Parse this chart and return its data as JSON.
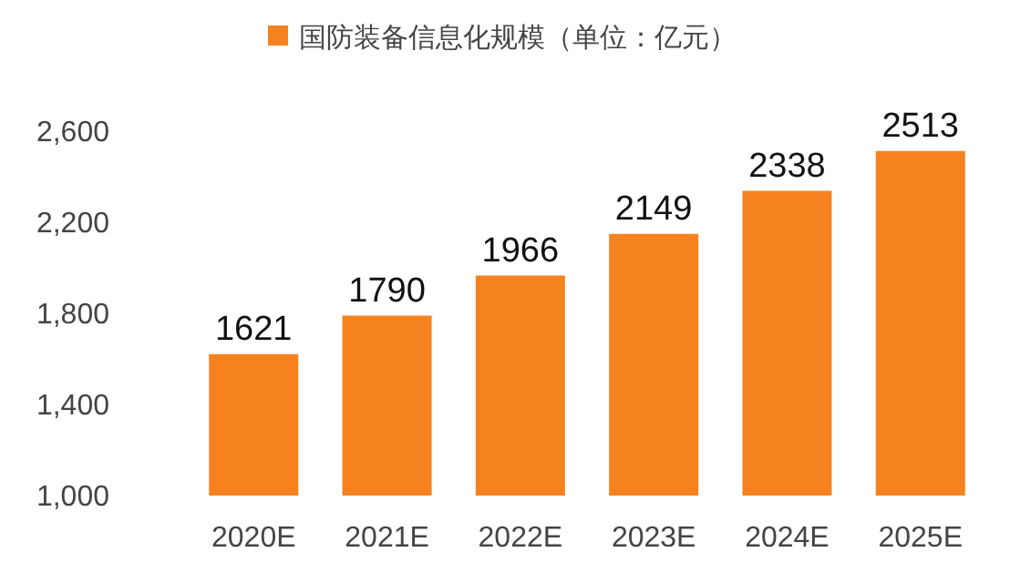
{
  "chart_data": {
    "type": "bar",
    "categories": [
      "2020E",
      "2021E",
      "2022E",
      "2023E",
      "2024E",
      "2025E"
    ],
    "series": [
      {
        "name": "国防装备信息化规模（单位：亿元）",
        "color": "#f5821f",
        "values": [
          1621,
          1790,
          1966,
          2149,
          2338,
          2513
        ]
      }
    ],
    "ylim": [
      1000,
      2600
    ],
    "yticks": [
      {
        "value": 1000,
        "label": "1,000"
      },
      {
        "value": 1400,
        "label": "1,400"
      },
      {
        "value": 1800,
        "label": "1,800"
      },
      {
        "value": 2200,
        "label": "2,200"
      },
      {
        "value": 2600,
        "label": "2,600"
      }
    ],
    "data_labels": true,
    "legend": "top",
    "grid": false
  }
}
